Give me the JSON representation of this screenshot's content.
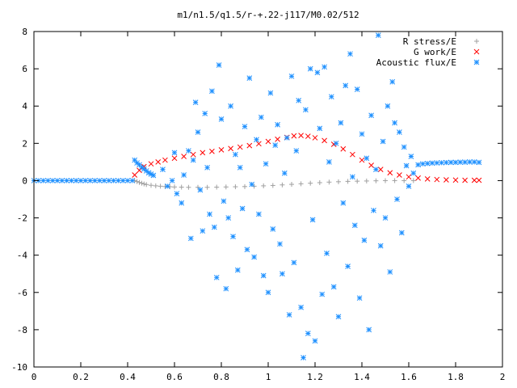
{
  "chart_data": {
    "type": "scatter",
    "title": "m1/n1.5/q1.5/r-+.22-j117/M0.02/512",
    "xlabel": "",
    "ylabel": "",
    "xlim": [
      0,
      2
    ],
    "ylim": [
      -10,
      8
    ],
    "x_ticks": [
      "0",
      "0.2",
      "0.4",
      "0.6",
      "0.8",
      "1",
      "1.2",
      "1.4",
      "1.6",
      "1.8",
      "2"
    ],
    "y_ticks": [
      "8",
      "6",
      "4",
      "2",
      "0",
      "-2",
      "-4",
      "-6",
      "-8",
      "-10"
    ],
    "grid": false,
    "legend_position": "top-right",
    "series": [
      {
        "name": "R stress/E",
        "marker": "plus",
        "color": "#a0a0a0",
        "points": [
          [
            0.43,
            0.0
          ],
          [
            0.44,
            -0.05
          ],
          [
            0.45,
            -0.1
          ],
          [
            0.46,
            -0.14
          ],
          [
            0.47,
            -0.18
          ],
          [
            0.48,
            -0.21
          ],
          [
            0.5,
            -0.25
          ],
          [
            0.52,
            -0.28
          ],
          [
            0.54,
            -0.3
          ],
          [
            0.56,
            -0.32
          ],
          [
            0.58,
            -0.33
          ],
          [
            0.6,
            -0.34
          ],
          [
            0.63,
            -0.35
          ],
          [
            0.66,
            -0.36
          ],
          [
            0.7,
            -0.36
          ],
          [
            0.74,
            -0.36
          ],
          [
            0.78,
            -0.35
          ],
          [
            0.82,
            -0.34
          ],
          [
            0.86,
            -0.33
          ],
          [
            0.9,
            -0.32
          ],
          [
            0.94,
            -0.3
          ],
          [
            0.98,
            -0.28
          ],
          [
            1.02,
            -0.26
          ],
          [
            1.06,
            -0.23
          ],
          [
            1.1,
            -0.2
          ],
          [
            1.14,
            -0.17
          ],
          [
            1.18,
            -0.14
          ],
          [
            1.22,
            -0.11
          ],
          [
            1.26,
            -0.08
          ],
          [
            1.3,
            -0.06
          ],
          [
            1.34,
            -0.04
          ],
          [
            1.38,
            -0.03
          ],
          [
            1.42,
            -0.02
          ],
          [
            1.46,
            -0.01
          ],
          [
            1.5,
            0.0
          ],
          [
            1.54,
            0.0
          ],
          [
            1.58,
            0.0
          ],
          [
            1.62,
            0.0
          ]
        ]
      },
      {
        "name": "G work/E",
        "marker": "cross",
        "color": "#ff0000",
        "points": [
          [
            0.43,
            0.3
          ],
          [
            0.45,
            0.55
          ],
          [
            0.47,
            0.75
          ],
          [
            0.5,
            0.9
          ],
          [
            0.53,
            1.0
          ],
          [
            0.56,
            1.1
          ],
          [
            0.6,
            1.2
          ],
          [
            0.64,
            1.3
          ],
          [
            0.68,
            1.4
          ],
          [
            0.72,
            1.5
          ],
          [
            0.76,
            1.57
          ],
          [
            0.8,
            1.65
          ],
          [
            0.84,
            1.72
          ],
          [
            0.88,
            1.8
          ],
          [
            0.92,
            1.88
          ],
          [
            0.96,
            1.98
          ],
          [
            1.0,
            2.1
          ],
          [
            1.04,
            2.22
          ],
          [
            1.08,
            2.32
          ],
          [
            1.11,
            2.4
          ],
          [
            1.14,
            2.42
          ],
          [
            1.17,
            2.38
          ],
          [
            1.2,
            2.3
          ],
          [
            1.24,
            2.15
          ],
          [
            1.28,
            1.95
          ],
          [
            1.32,
            1.7
          ],
          [
            1.36,
            1.4
          ],
          [
            1.4,
            1.1
          ],
          [
            1.44,
            0.82
          ],
          [
            1.48,
            0.6
          ],
          [
            1.52,
            0.42
          ],
          [
            1.56,
            0.3
          ],
          [
            1.6,
            0.2
          ],
          [
            1.64,
            0.14
          ],
          [
            1.68,
            0.09
          ],
          [
            1.72,
            0.06
          ],
          [
            1.76,
            0.04
          ],
          [
            1.8,
            0.03
          ],
          [
            1.84,
            0.02
          ],
          [
            1.88,
            0.02
          ],
          [
            1.9,
            0.02
          ]
        ]
      },
      {
        "name": "Acoustic flux/E",
        "marker": "star",
        "color": "#1e90ff",
        "points": [
          [
            0.0,
            0.0
          ],
          [
            0.02,
            0.0
          ],
          [
            0.04,
            0.0
          ],
          [
            0.06,
            0.0
          ],
          [
            0.08,
            0.0
          ],
          [
            0.1,
            0.0
          ],
          [
            0.12,
            0.0
          ],
          [
            0.14,
            0.0
          ],
          [
            0.16,
            0.0
          ],
          [
            0.18,
            0.0
          ],
          [
            0.2,
            0.0
          ],
          [
            0.22,
            0.0
          ],
          [
            0.24,
            0.0
          ],
          [
            0.26,
            0.0
          ],
          [
            0.28,
            0.0
          ],
          [
            0.3,
            0.0
          ],
          [
            0.32,
            0.0
          ],
          [
            0.34,
            0.0
          ],
          [
            0.36,
            0.0
          ],
          [
            0.38,
            0.0
          ],
          [
            0.4,
            0.0
          ],
          [
            0.42,
            0.0
          ],
          [
            0.43,
            1.1
          ],
          [
            0.44,
            0.95
          ],
          [
            0.45,
            0.85
          ],
          [
            0.46,
            0.72
          ],
          [
            0.47,
            0.62
          ],
          [
            0.48,
            0.52
          ],
          [
            0.49,
            0.42
          ],
          [
            0.5,
            0.35
          ],
          [
            0.51,
            0.28
          ],
          [
            0.55,
            0.6
          ],
          [
            0.57,
            -0.3
          ],
          [
            0.59,
            0.0
          ],
          [
            0.6,
            1.5
          ],
          [
            0.61,
            -0.7
          ],
          [
            0.63,
            -1.2
          ],
          [
            0.64,
            0.3
          ],
          [
            0.66,
            1.6
          ],
          [
            0.67,
            -3.1
          ],
          [
            0.68,
            1.1
          ],
          [
            0.69,
            4.2
          ],
          [
            0.7,
            2.6
          ],
          [
            0.71,
            -0.5
          ],
          [
            0.72,
            -2.7
          ],
          [
            0.73,
            3.6
          ],
          [
            0.74,
            0.7
          ],
          [
            0.75,
            -1.8
          ],
          [
            0.76,
            4.8
          ],
          [
            0.77,
            -2.5
          ],
          [
            0.78,
            -5.2
          ],
          [
            0.79,
            6.2
          ],
          [
            0.8,
            3.3
          ],
          [
            0.81,
            -1.1
          ],
          [
            0.82,
            -5.8
          ],
          [
            0.83,
            -2.0
          ],
          [
            0.84,
            4.0
          ],
          [
            0.85,
            -3.0
          ],
          [
            0.86,
            1.4
          ],
          [
            0.87,
            -4.8
          ],
          [
            0.88,
            0.7
          ],
          [
            0.89,
            -1.5
          ],
          [
            0.9,
            2.9
          ],
          [
            0.91,
            -3.7
          ],
          [
            0.92,
            5.5
          ],
          [
            0.93,
            -0.2
          ],
          [
            0.94,
            -4.1
          ],
          [
            0.95,
            2.2
          ],
          [
            0.96,
            -1.8
          ],
          [
            0.97,
            3.4
          ],
          [
            0.98,
            -5.1
          ],
          [
            0.99,
            0.9
          ],
          [
            1.0,
            -6.0
          ],
          [
            1.01,
            4.7
          ],
          [
            1.02,
            -2.6
          ],
          [
            1.03,
            1.9
          ],
          [
            1.04,
            3.0
          ],
          [
            1.05,
            -3.4
          ],
          [
            1.06,
            -5.0
          ],
          [
            1.07,
            0.4
          ],
          [
            1.08,
            2.3
          ],
          [
            1.09,
            -7.2
          ],
          [
            1.1,
            5.6
          ],
          [
            1.11,
            -4.4
          ],
          [
            1.12,
            1.6
          ],
          [
            1.13,
            4.3
          ],
          [
            1.14,
            -6.8
          ],
          [
            1.15,
            -9.5
          ],
          [
            1.16,
            3.8
          ],
          [
            1.17,
            -8.2
          ],
          [
            1.18,
            6.0
          ],
          [
            1.19,
            -2.1
          ],
          [
            1.2,
            -8.6
          ],
          [
            1.21,
            5.8
          ],
          [
            1.22,
            2.8
          ],
          [
            1.23,
            -6.1
          ],
          [
            1.24,
            6.1
          ],
          [
            1.25,
            -3.9
          ],
          [
            1.26,
            1.0
          ],
          [
            1.27,
            4.5
          ],
          [
            1.28,
            -5.7
          ],
          [
            1.29,
            2.0
          ],
          [
            1.3,
            -7.3
          ],
          [
            1.31,
            3.1
          ],
          [
            1.32,
            -1.2
          ],
          [
            1.33,
            5.1
          ],
          [
            1.34,
            -4.6
          ],
          [
            1.35,
            6.8
          ],
          [
            1.36,
            0.2
          ],
          [
            1.37,
            -2.4
          ],
          [
            1.38,
            4.9
          ],
          [
            1.39,
            -6.3
          ],
          [
            1.4,
            2.5
          ],
          [
            1.41,
            -3.2
          ],
          [
            1.42,
            1.2
          ],
          [
            1.43,
            -8.0
          ],
          [
            1.44,
            3.5
          ],
          [
            1.45,
            -1.6
          ],
          [
            1.46,
            0.6
          ],
          [
            1.47,
            7.8
          ],
          [
            1.48,
            -3.5
          ],
          [
            1.49,
            2.1
          ],
          [
            1.5,
            -2.0
          ],
          [
            1.51,
            4.0
          ],
          [
            1.52,
            -4.9
          ],
          [
            1.53,
            5.3
          ],
          [
            1.54,
            3.1
          ],
          [
            1.55,
            -1.0
          ],
          [
            1.56,
            2.6
          ],
          [
            1.57,
            -2.8
          ],
          [
            1.58,
            1.8
          ],
          [
            1.59,
            0.8
          ],
          [
            1.6,
            -0.3
          ],
          [
            1.61,
            1.3
          ],
          [
            1.62,
            0.4
          ],
          [
            1.64,
            0.85
          ],
          [
            1.66,
            0.9
          ],
          [
            1.68,
            0.92
          ],
          [
            1.7,
            0.94
          ],
          [
            1.72,
            0.95
          ],
          [
            1.74,
            0.96
          ],
          [
            1.76,
            0.97
          ],
          [
            1.78,
            0.98
          ],
          [
            1.8,
            0.98
          ],
          [
            1.82,
            0.99
          ],
          [
            1.84,
            0.99
          ],
          [
            1.86,
            1.0
          ],
          [
            1.88,
            1.0
          ],
          [
            1.9,
            0.98
          ]
        ]
      }
    ]
  }
}
